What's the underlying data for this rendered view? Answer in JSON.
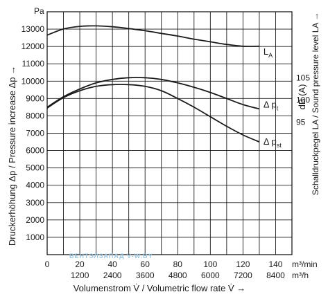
{
  "chart_data": {
    "type": "line",
    "unit_left": "Pa",
    "ylabel_left": "Druckerhöhung Δp / Pressure increase Δp →",
    "ylabel_right": "Schalldruckpegel LA / Sound pressure level LA →",
    "unit_right": "dB (A)",
    "xlabel": "Volumenstrom V̇ / Volumetric flow rate V̇ →",
    "x_unit_primary": "m³/min",
    "x_unit_secondary": "m³/h",
    "xlim": [
      0,
      150
    ],
    "ylim": [
      0,
      14000
    ],
    "x_ticks_primary": [
      "0",
      "20",
      "40",
      "60",
      "80",
      "100",
      "120",
      "140"
    ],
    "x_ticks_secondary": [
      "1200",
      "2400",
      "3600",
      "4800",
      "6000",
      "7200",
      "8400"
    ],
    "y_ticks_left": [
      "1000",
      "2000",
      "3000",
      "4000",
      "5000",
      "6000",
      "7000",
      "8000",
      "9000",
      "10000",
      "11000",
      "12000",
      "13000"
    ],
    "y_ticks_right": [
      "95",
      "100",
      "105"
    ],
    "right_axis_range": [
      65,
      120
    ],
    "grid": true,
    "watermark": "ВЕНТЭЛЗАПАД   V-W.BY",
    "series": [
      {
        "name": "L",
        "name_sub": "A",
        "axis": "right",
        "x": [
          0,
          10,
          20,
          30,
          40,
          50,
          60,
          70,
          80,
          90,
          100,
          110,
          120,
          130
        ],
        "y": [
          114.7,
          116.1,
          116.7,
          116.8,
          116.6,
          116.2,
          115.7,
          115.1,
          114.5,
          113.8,
          113.2,
          112.6,
          112.2,
          112.2
        ]
      },
      {
        "name": "Δ p",
        "name_sub": "t",
        "axis": "left",
        "x": [
          0,
          10,
          20,
          30,
          40,
          50,
          60,
          70,
          80,
          90,
          100,
          110,
          120,
          130
        ],
        "y": [
          8500,
          9100,
          9550,
          9900,
          10100,
          10200,
          10200,
          10100,
          9900,
          9650,
          9350,
          9000,
          8650,
          8400
        ]
      },
      {
        "name": "Δ p",
        "name_sub": "st",
        "axis": "left",
        "x": [
          0,
          10,
          20,
          30,
          40,
          50,
          60,
          70,
          80,
          90,
          100,
          110,
          120,
          130
        ],
        "y": [
          8450,
          9050,
          9450,
          9700,
          9800,
          9800,
          9700,
          9450,
          9000,
          8500,
          7950,
          7400,
          6900,
          6500
        ]
      }
    ]
  }
}
